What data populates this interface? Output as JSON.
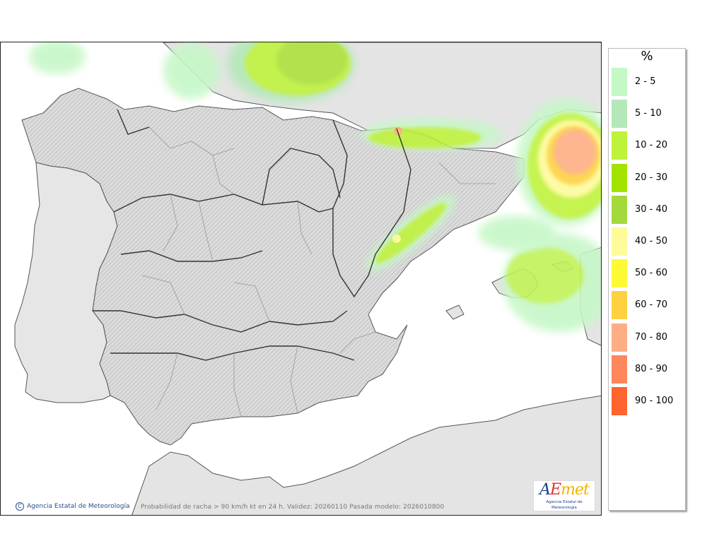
{
  "map": {
    "credit": "Agencia Estatal de Meteorología",
    "credit_symbol": "C",
    "caption": "Probabilidad de racha > 90 km/h kt en 24 h. Validez: 20260110 Pasada modelo: 2026010800",
    "land_color": "#e4e4e4",
    "sea_color": "#ffffff"
  },
  "logo": {
    "mark_a": "A",
    "mark_e": "E",
    "mark_rest": "met",
    "subtitle": "Agencia Estatal de Meteorología"
  },
  "legend": {
    "unit": "%",
    "items": [
      {
        "label": "2 - 5",
        "color": "#c6f7c7"
      },
      {
        "label": "5 - 10",
        "color": "#b4e8b8"
      },
      {
        "label": "10 - 20",
        "color": "#bff23a"
      },
      {
        "label": "20 - 30",
        "color": "#a3e300"
      },
      {
        "label": "30 - 40",
        "color": "#a4d93c"
      },
      {
        "label": "40 - 50",
        "color": "#fefb9b"
      },
      {
        "label": "50 - 60",
        "color": "#fdf935"
      },
      {
        "label": "60 - 70",
        "color": "#fdd13f"
      },
      {
        "label": "70 - 80",
        "color": "#fdae84"
      },
      {
        "label": "80 - 90",
        "color": "#fd865a"
      },
      {
        "label": "90 - 100",
        "color": "#fd6430"
      }
    ]
  }
}
